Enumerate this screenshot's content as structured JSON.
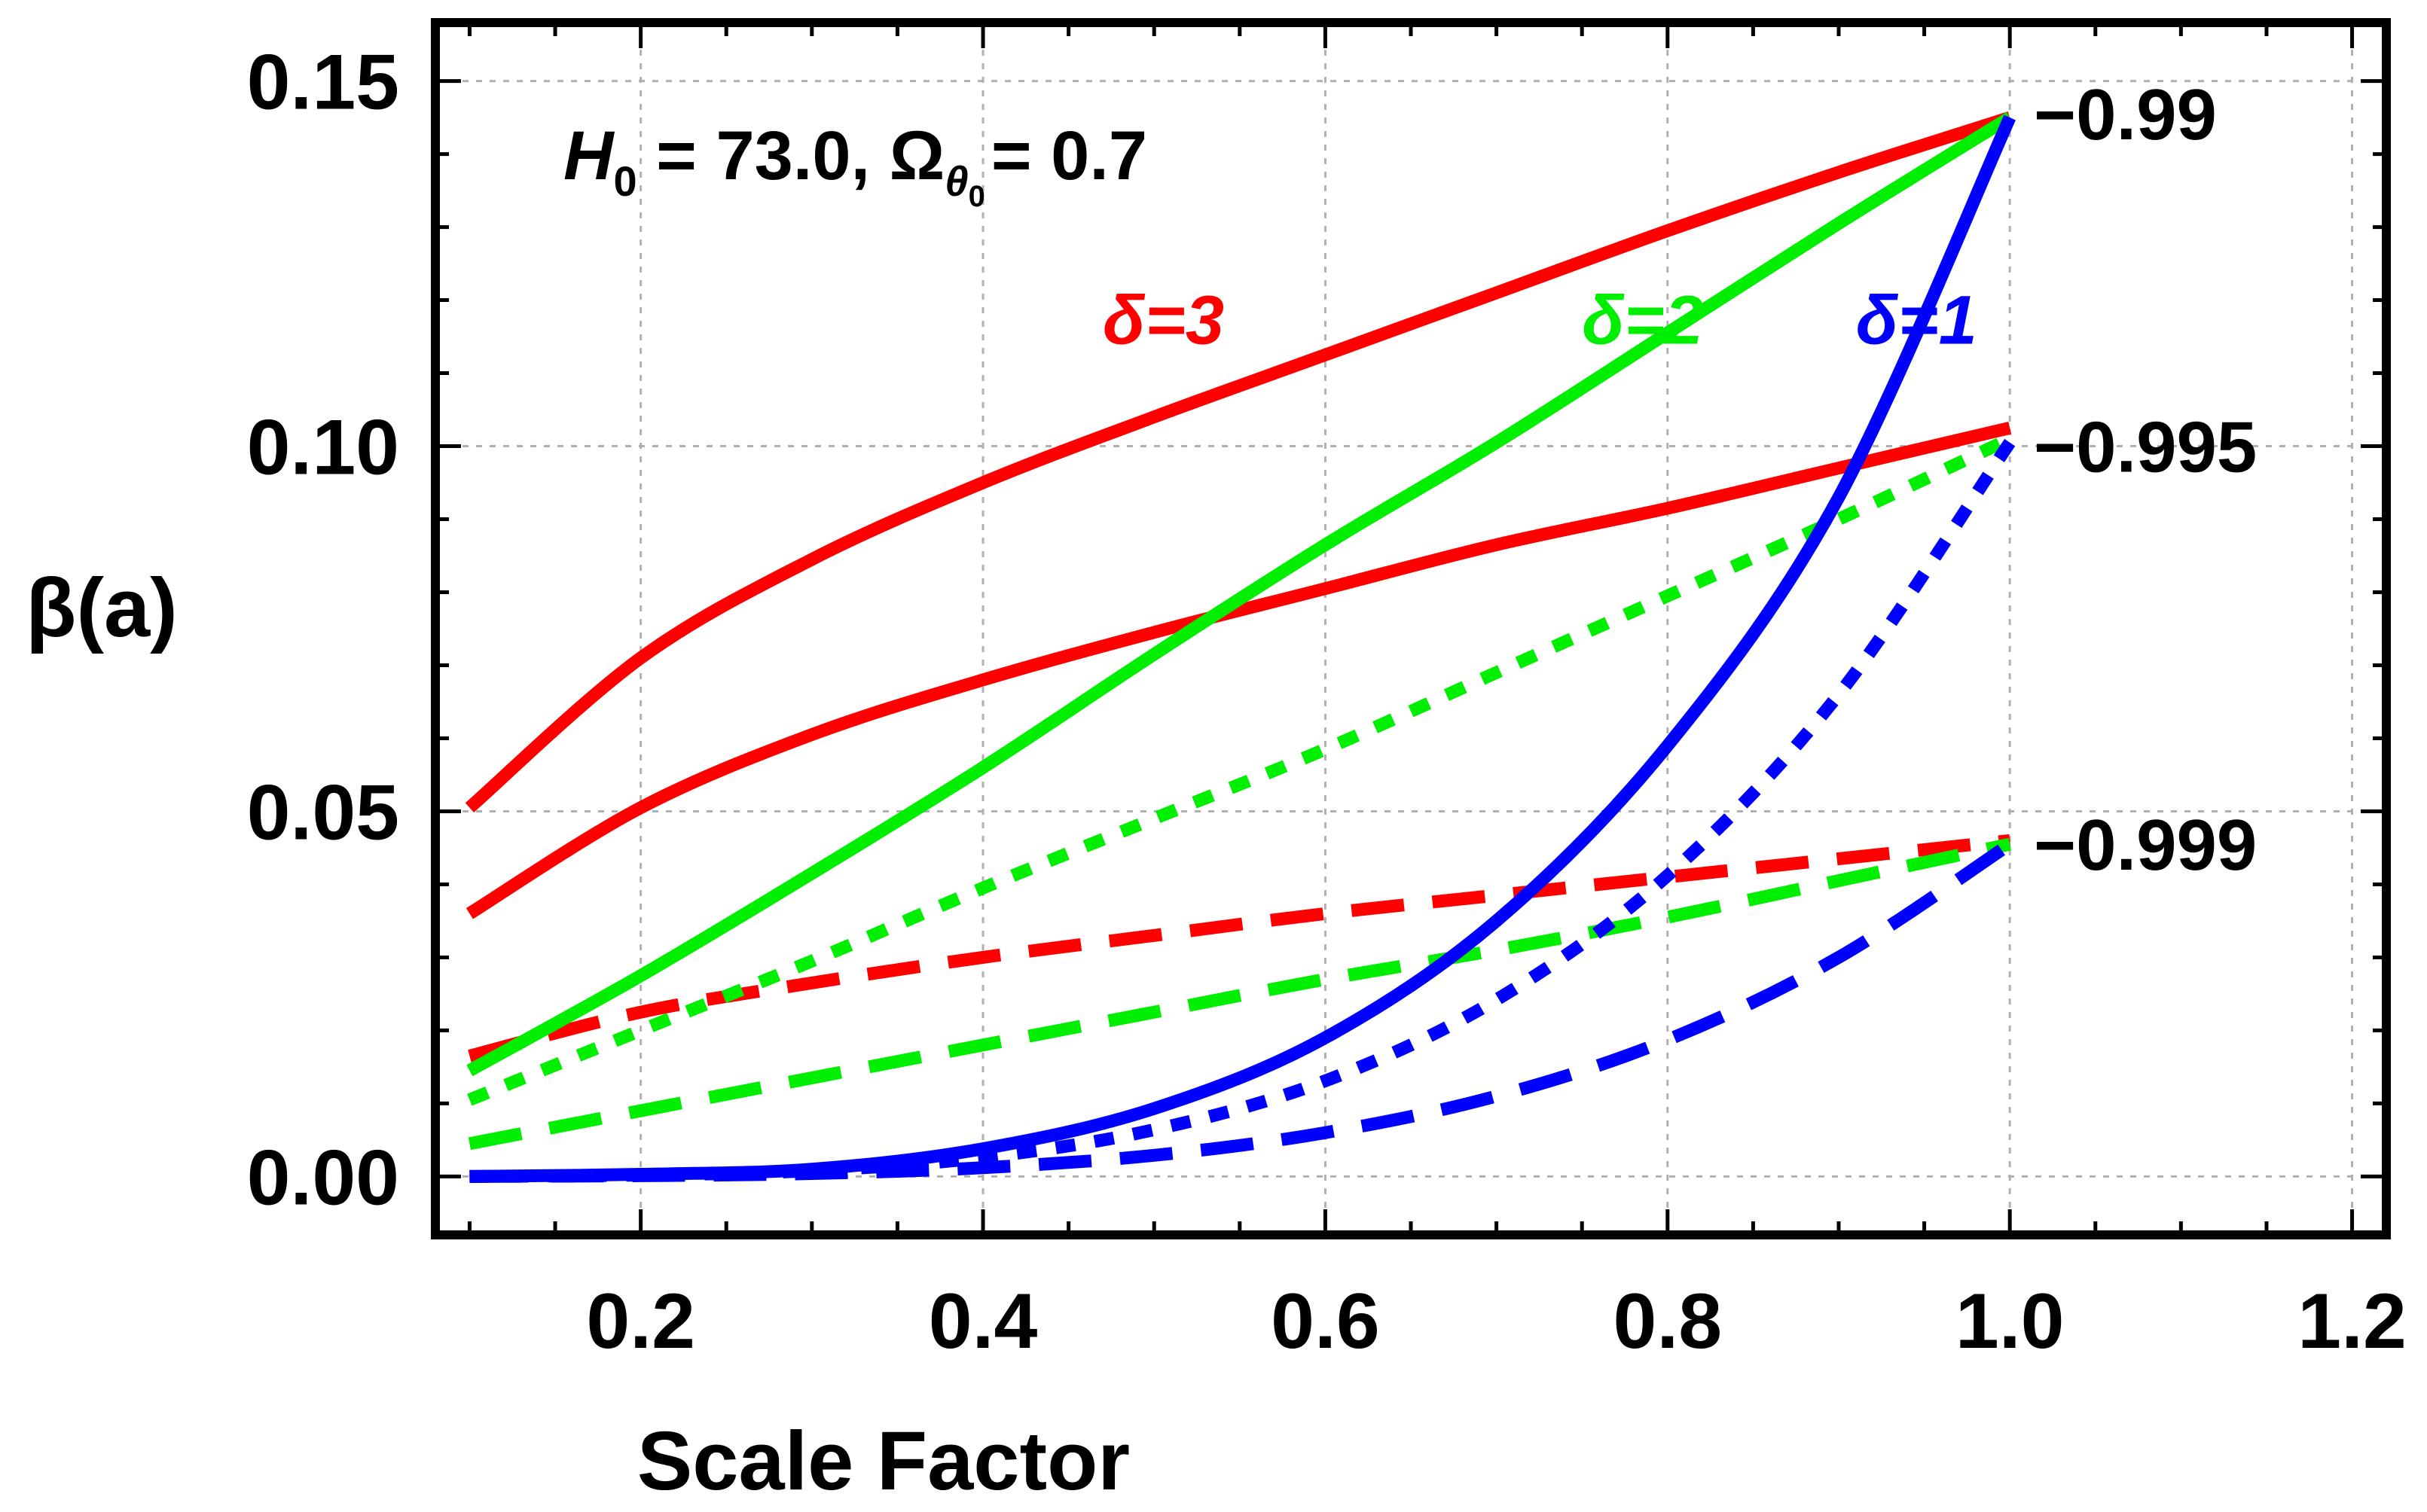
{
  "chart_data": {
    "type": "line",
    "title": "",
    "annotation": {
      "h0_symbol": "H",
      "h0_sub": "0",
      "h0_value": " = 73.0, ",
      "omega_symbol": "Ω",
      "omega_sub": "θ",
      "omega_subsub": "0",
      "omega_value": "= 0.7"
    },
    "xlabel": "Scale Factor",
    "ylabel": "β(a)",
    "xlim": [
      0.08,
      1.22
    ],
    "ylim": [
      -0.008,
      0.158
    ],
    "xticks": [
      "0.2",
      "0.4",
      "0.6",
      "0.8",
      "1.0",
      "1.2"
    ],
    "xtick_values": [
      0.2,
      0.4,
      0.6,
      0.8,
      1.0,
      1.2
    ],
    "yticks": [
      "0.00",
      "0.05",
      "0.10",
      "0.15"
    ],
    "ytick_values": [
      0.0,
      0.05,
      0.1,
      0.15
    ],
    "grid": true,
    "colors": {
      "delta1": "#0000ff",
      "delta2": "#00ee00",
      "delta3": "#ff0000"
    },
    "delta_labels": [
      {
        "text": "δ=3",
        "color": "#ff0000",
        "x": 0.47,
        "y": 0.114
      },
      {
        "text": "δ=2",
        "color": "#00ee00",
        "x": 0.75,
        "y": 0.114
      },
      {
        "text": "δ=1",
        "color": "#0000ff",
        "x": 0.91,
        "y": 0.114
      }
    ],
    "w_labels": [
      {
        "text": "−0.99",
        "y": 0.1455
      },
      {
        "text": "−0.995",
        "y": 0.1
      },
      {
        "text": "−0.999",
        "y": 0.0455
      }
    ],
    "series": [
      {
        "name": "δ=3, w=-0.99",
        "delta": 3,
        "w": "-0.99",
        "style": "solid",
        "color": "#ff0000",
        "x": [
          0.1,
          0.2,
          0.3,
          0.4,
          0.5,
          0.6,
          0.7,
          0.8,
          0.9,
          1.0
        ],
        "y": [
          0.0505,
          0.071,
          0.0845,
          0.095,
          0.104,
          0.1125,
          0.121,
          0.1295,
          0.1375,
          0.145
        ]
      },
      {
        "name": "δ=3, w=-0.995",
        "delta": 3,
        "w": "-0.995",
        "style": "solid",
        "color": "#ff0000",
        "x": [
          0.1,
          0.2,
          0.3,
          0.4,
          0.5,
          0.6,
          0.7,
          0.8,
          0.9,
          1.0
        ],
        "y": [
          0.036,
          0.0505,
          0.0605,
          0.068,
          0.0745,
          0.0805,
          0.0865,
          0.0915,
          0.097,
          0.1025
        ]
      },
      {
        "name": "δ=3, w=-0.999",
        "delta": 3,
        "w": "-0.999",
        "style": "dashed",
        "color": "#ff0000",
        "x": [
          0.1,
          0.2,
          0.3,
          0.4,
          0.5,
          0.6,
          0.7,
          0.8,
          0.9,
          1.0
        ],
        "y": [
          0.0165,
          0.0225,
          0.0265,
          0.03,
          0.033,
          0.036,
          0.0385,
          0.041,
          0.0435,
          0.046
        ]
      },
      {
        "name": "δ=2, w=-0.99",
        "delta": 2,
        "w": "-0.99",
        "style": "solid",
        "color": "#00ee00",
        "x": [
          0.1,
          0.2,
          0.3,
          0.4,
          0.5,
          0.6,
          0.7,
          0.8,
          0.9,
          1.0
        ],
        "y": [
          0.0145,
          0.0275,
          0.0415,
          0.056,
          0.0715,
          0.0865,
          0.1005,
          0.1155,
          0.1305,
          0.145
        ]
      },
      {
        "name": "δ=2, w=-0.995",
        "delta": 2,
        "w": "-0.995",
        "style": "dotted",
        "color": "#00ee00",
        "x": [
          0.1,
          0.2,
          0.3,
          0.4,
          0.5,
          0.6,
          0.7,
          0.8,
          0.9,
          1.0
        ],
        "y": [
          0.0105,
          0.02,
          0.0295,
          0.0395,
          0.049,
          0.0585,
          0.069,
          0.0795,
          0.09,
          0.101
        ]
      },
      {
        "name": "δ=2, w=-0.999",
        "delta": 2,
        "w": "-0.999",
        "style": "dashed",
        "color": "#00ee00",
        "x": [
          0.1,
          0.2,
          0.3,
          0.4,
          0.5,
          0.6,
          0.7,
          0.8,
          0.9,
          1.0
        ],
        "y": [
          0.0045,
          0.009,
          0.0135,
          0.018,
          0.0225,
          0.027,
          0.031,
          0.0355,
          0.0405,
          0.0455
        ]
      },
      {
        "name": "δ=1, w=-0.99",
        "delta": 1,
        "w": "-0.99",
        "style": "solid",
        "color": "#0000ff",
        "x": [
          0.1,
          0.2,
          0.3,
          0.4,
          0.5,
          0.6,
          0.7,
          0.8,
          0.9,
          1.0
        ],
        "y": [
          0.0,
          0.0003,
          0.001,
          0.0038,
          0.0093,
          0.019,
          0.035,
          0.059,
          0.093,
          0.145
        ]
      },
      {
        "name": "δ=1, w=-0.995",
        "delta": 1,
        "w": "-0.995",
        "style": "dotted",
        "color": "#0000ff",
        "x": [
          0.1,
          0.2,
          0.3,
          0.4,
          0.5,
          0.6,
          0.7,
          0.8,
          0.9,
          1.0
        ],
        "y": [
          0.0,
          0.0002,
          0.0008,
          0.0026,
          0.0064,
          0.0131,
          0.0242,
          0.0412,
          0.066,
          0.1005
        ]
      },
      {
        "name": "δ=1, w=-0.999",
        "delta": 1,
        "w": "-0.999",
        "style": "dashed",
        "color": "#0000ff",
        "x": [
          0.1,
          0.2,
          0.3,
          0.4,
          0.5,
          0.6,
          0.7,
          0.8,
          0.9,
          1.0
        ],
        "y": [
          0.0,
          0.0001,
          0.0004,
          0.0012,
          0.0029,
          0.006,
          0.011,
          0.0187,
          0.03,
          0.0455
        ]
      }
    ]
  }
}
